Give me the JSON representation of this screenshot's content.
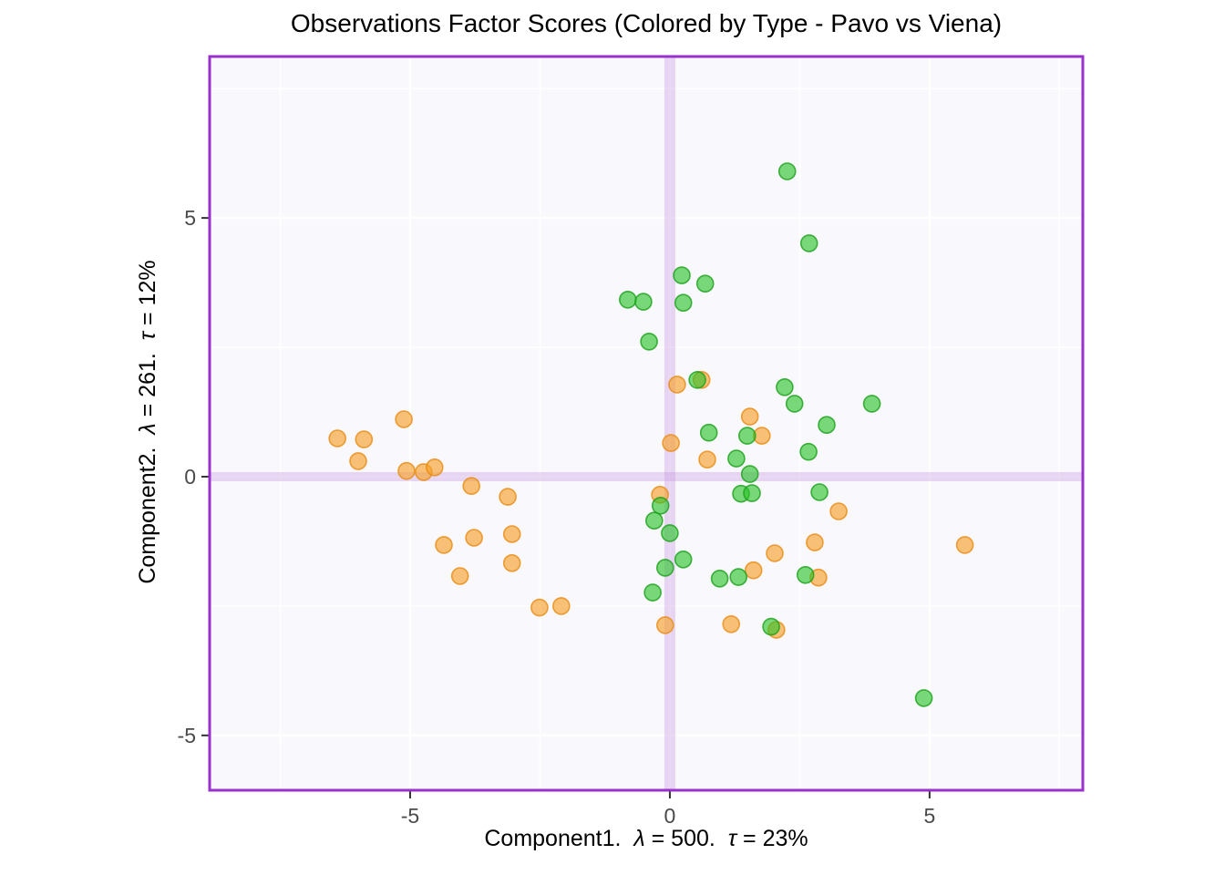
{
  "title": "Observations Factor Scores (Colored by Type - Pavo vs Viena)",
  "x_axis": {
    "parts": [
      {
        "t": "Component1.  "
      },
      {
        "t": "λ",
        "i": 1
      },
      {
        "t": " = 500.  "
      },
      {
        "t": "τ",
        "i": 1
      },
      {
        "t": " = 23%"
      }
    ]
  },
  "y_axis": {
    "parts": [
      {
        "t": "Component2.  "
      },
      {
        "t": "λ",
        "i": 1
      },
      {
        "t": " = 261.  "
      },
      {
        "t": "τ",
        "i": 1
      },
      {
        "t": " = 12%"
      }
    ]
  },
  "chart_data": {
    "type": "scatter",
    "title": "Observations Factor Scores (Colored by Type - Pavo vs Viena)",
    "xlabel": "Component1.  λ = 500.  τ = 23%",
    "ylabel": "Component2.  λ = 261.  τ = 12%",
    "xlim": [
      -8.86,
      7.95
    ],
    "ylim": [
      -6.06,
      8.12
    ],
    "x_ticks": [
      -5,
      0,
      5
    ],
    "y_ticks": [
      5,
      0,
      -5
    ],
    "x_minor_gridlines": [
      -7.5,
      -2.5,
      2.5,
      7.5
    ],
    "y_minor_gridlines": [
      7.5,
      2.5,
      -2.5
    ],
    "ref_lines": {
      "x": 0,
      "y": 0
    },
    "grid": "white major and minor gridlines on light panel",
    "legend": "none",
    "series": [
      {
        "name": "orange-type",
        "fill": "#F79E24",
        "stroke": "#E88A10",
        "points": [
          [
            -6.4,
            0.74
          ],
          [
            -5.89,
            0.72
          ],
          [
            -6.0,
            0.3
          ],
          [
            -5.12,
            1.11
          ],
          [
            -5.07,
            0.11
          ],
          [
            -4.74,
            0.09
          ],
          [
            -4.53,
            0.18
          ],
          [
            -3.82,
            -0.18
          ],
          [
            -3.12,
            -0.39
          ],
          [
            -4.35,
            -1.32
          ],
          [
            -3.77,
            -1.18
          ],
          [
            -3.04,
            -1.11
          ],
          [
            -3.04,
            -1.67
          ],
          [
            -4.04,
            -1.92
          ],
          [
            -2.51,
            -2.53
          ],
          [
            -2.09,
            -2.5
          ],
          [
            0.14,
            1.78
          ],
          [
            0.61,
            1.87
          ],
          [
            1.54,
            1.16
          ],
          [
            1.77,
            0.79
          ],
          [
            0.02,
            0.65
          ],
          [
            0.72,
            0.33
          ],
          [
            -0.19,
            -0.35
          ],
          [
            3.25,
            -0.67
          ],
          [
            2.79,
            -1.27
          ],
          [
            2.02,
            -1.48
          ],
          [
            1.61,
            -1.81
          ],
          [
            2.86,
            -1.95
          ],
          [
            -0.09,
            -2.87
          ],
          [
            1.18,
            -2.85
          ],
          [
            2.05,
            -2.96
          ],
          [
            5.68,
            -1.32
          ]
        ]
      },
      {
        "name": "green-type",
        "fill": "#28C328",
        "stroke": "#18A018",
        "points": [
          [
            2.26,
            5.9
          ],
          [
            2.68,
            4.51
          ],
          [
            0.23,
            3.89
          ],
          [
            0.68,
            3.73
          ],
          [
            -0.81,
            3.42
          ],
          [
            -0.51,
            3.38
          ],
          [
            0.26,
            3.36
          ],
          [
            -0.4,
            2.61
          ],
          [
            0.53,
            1.87
          ],
          [
            2.21,
            1.73
          ],
          [
            2.4,
            1.41
          ],
          [
            3.89,
            1.41
          ],
          [
            3.02,
            1.0
          ],
          [
            0.75,
            0.85
          ],
          [
            1.49,
            0.79
          ],
          [
            2.67,
            0.48
          ],
          [
            1.28,
            0.35
          ],
          [
            1.54,
            0.05
          ],
          [
            1.37,
            -0.33
          ],
          [
            1.58,
            -0.32
          ],
          [
            2.88,
            -0.3
          ],
          [
            -0.18,
            -0.56
          ],
          [
            -0.3,
            -0.85
          ],
          [
            0.0,
            -1.09
          ],
          [
            0.26,
            -1.6
          ],
          [
            -0.09,
            -1.76
          ],
          [
            -0.33,
            -2.24
          ],
          [
            0.96,
            -1.97
          ],
          [
            1.32,
            -1.94
          ],
          [
            2.61,
            -1.9
          ],
          [
            1.95,
            -2.9
          ],
          [
            4.89,
            -4.28
          ]
        ]
      }
    ]
  },
  "style": {
    "panel_bg": "#F9F8FC",
    "panel_border": "#9932CC",
    "grid_color": "#FFFFFF",
    "crosshair_color": "#C391DF",
    "crosshair_opacity": 0.35,
    "point_opacity": 0.62,
    "tick_label_color": "#4A4A4A",
    "tick_mark_color": "#333333"
  }
}
